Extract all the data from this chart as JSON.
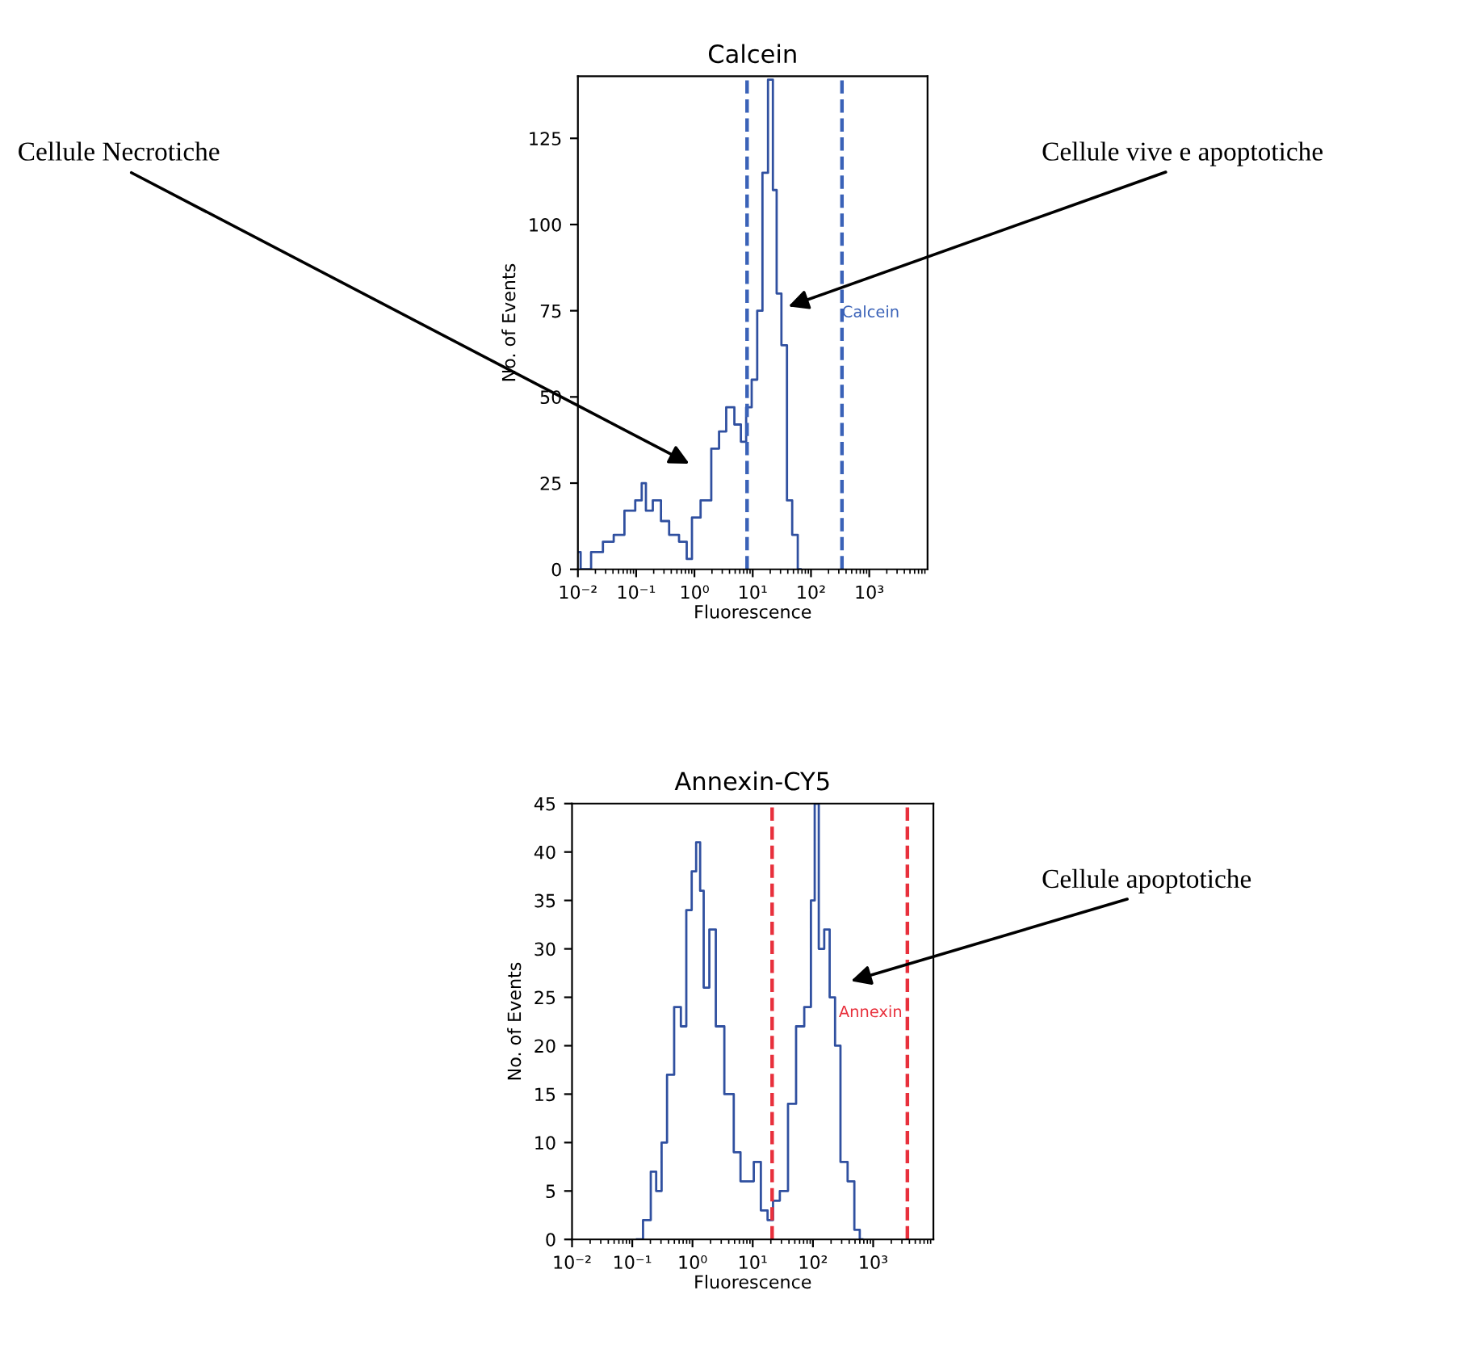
{
  "chart_data": [
    {
      "type": "step",
      "title": "Calcein",
      "xlabel": "Fluorescence",
      "ylabel": "No. of Events",
      "log": "x",
      "grid": false,
      "legend": false,
      "xlim": [
        0.01,
        10000
      ],
      "ylim": [
        0,
        143
      ],
      "xticks": [
        {
          "value": 0.01,
          "label": "10⁻²"
        },
        {
          "value": 0.1,
          "label": "10⁻¹"
        },
        {
          "value": 1,
          "label": "10⁰"
        },
        {
          "value": 10,
          "label": "10¹"
        },
        {
          "value": 100,
          "label": "10²"
        },
        {
          "value": 1000,
          "label": "10³"
        }
      ],
      "yticks": [
        0,
        25,
        50,
        75,
        100,
        125
      ],
      "series": [
        {
          "color": "#3050a0",
          "x": [
            0.01,
            0.0123,
            0.0214,
            0.0324,
            0.05,
            0.0759,
            0.117,
            0.132,
            0.162,
            0.224,
            0.309,
            0.427,
            0.661,
            0.813,
            1.0,
            1.55,
            2.34,
            2.95,
            4.07,
            5.62,
            6.92,
            8.51,
            10.7,
            13.2,
            16.2,
            20.4,
            24.0,
            27.5,
            34.7,
            42.7,
            52.5,
            66.1
          ],
          "values": [
            5,
            0,
            5,
            8,
            10,
            17,
            20,
            25,
            17,
            20,
            14,
            10,
            8,
            3,
            15,
            20,
            35,
            40,
            47,
            42,
            37,
            47,
            55,
            75,
            115,
            142,
            110,
            80,
            65,
            20,
            10,
            0
          ]
        }
      ],
      "ref_lines": [
        {
          "axis": "x",
          "value": 8,
          "color": "#3a62b8",
          "line_style": "dashed"
        },
        {
          "axis": "x",
          "value": 340,
          "label": "Calcein",
          "color": "#3a62b8",
          "line_style": "dashed"
        }
      ],
      "annotations": [
        "Cellule Necrotiche",
        "Cellule vive e apoptotiche"
      ]
    },
    {
      "type": "step",
      "title": "Annexin-CY5",
      "xlabel": "Fluorescence",
      "ylabel": "No. of Events",
      "log": "x",
      "grid": false,
      "legend": false,
      "xlim": [
        0.01,
        10000
      ],
      "ylim": [
        0,
        45
      ],
      "xticks": [
        {
          "value": 0.01,
          "label": "10⁻²"
        },
        {
          "value": 0.1,
          "label": "10⁻¹"
        },
        {
          "value": 1,
          "label": "10⁰"
        },
        {
          "value": 10,
          "label": "10¹"
        },
        {
          "value": 100,
          "label": "10²"
        },
        {
          "value": 1000,
          "label": "10³"
        }
      ],
      "yticks": [
        0,
        5,
        10,
        15,
        20,
        25,
        30,
        35,
        40,
        45
      ],
      "series": [
        {
          "color": "#3050a0",
          "x": [
            0.12,
            0.182,
            0.224,
            0.275,
            0.339,
            0.417,
            0.575,
            0.708,
            0.871,
            1.07,
            1.23,
            1.45,
            1.62,
            2.19,
            2.69,
            4.07,
            5.62,
            6.92,
            9.33,
            11.5,
            15.8,
            19.5,
            24.0,
            32.4,
            44.7,
            60.3,
            83.2,
            102,
            112,
            138,
            170,
            209,
            257,
            316,
            437,
            537,
            661
          ],
          "values": [
            0,
            2,
            7,
            5,
            10,
            17,
            24,
            22,
            34,
            38,
            41,
            36,
            26,
            32,
            22,
            15,
            9,
            6,
            6,
            8,
            3,
            2,
            4,
            5,
            14,
            22,
            24,
            35,
            45,
            30,
            32,
            25,
            20,
            8,
            6,
            1,
            0
          ]
        }
      ],
      "ref_lines": [
        {
          "axis": "x",
          "value": 21,
          "color": "#e8303c",
          "line_style": "dashed"
        },
        {
          "axis": "x",
          "value": 3700,
          "label": "Annexin",
          "color": "#e8303c",
          "line_style": "dashed"
        }
      ],
      "annotations": [
        "Cellule apoptotiche"
      ]
    }
  ]
}
